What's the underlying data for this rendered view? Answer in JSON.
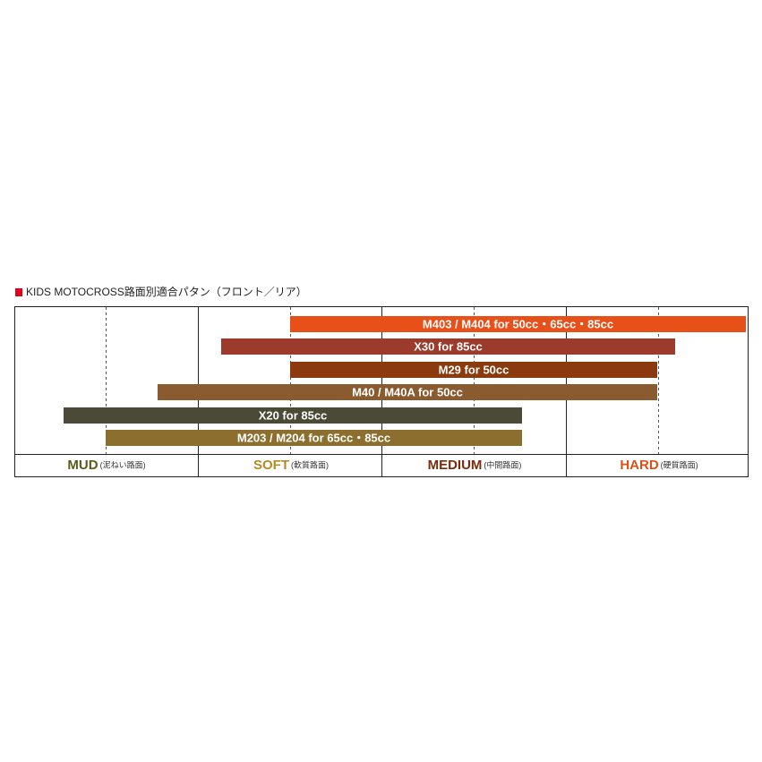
{
  "title": "KIDS MOTOCROSS路面別適合パタン（フロント／リア）",
  "patterns": [
    "M403 / M404 for 50cc・65cc・85cc",
    "X30 for 85cc",
    "M29 for 50cc",
    "M40 / M40A for 50cc",
    "X20 for 85cc",
    "M203 / M204 for 65cc・85cc"
  ],
  "terrains": [
    {
      "name": "MUD",
      "note": "(泥ねい路面)"
    },
    {
      "name": "SOFT",
      "note": "(軟質路面)"
    },
    {
      "name": "MEDIUM",
      "note": "(中間路面)"
    },
    {
      "name": "HARD",
      "note": "(硬質路面)"
    }
  ]
}
